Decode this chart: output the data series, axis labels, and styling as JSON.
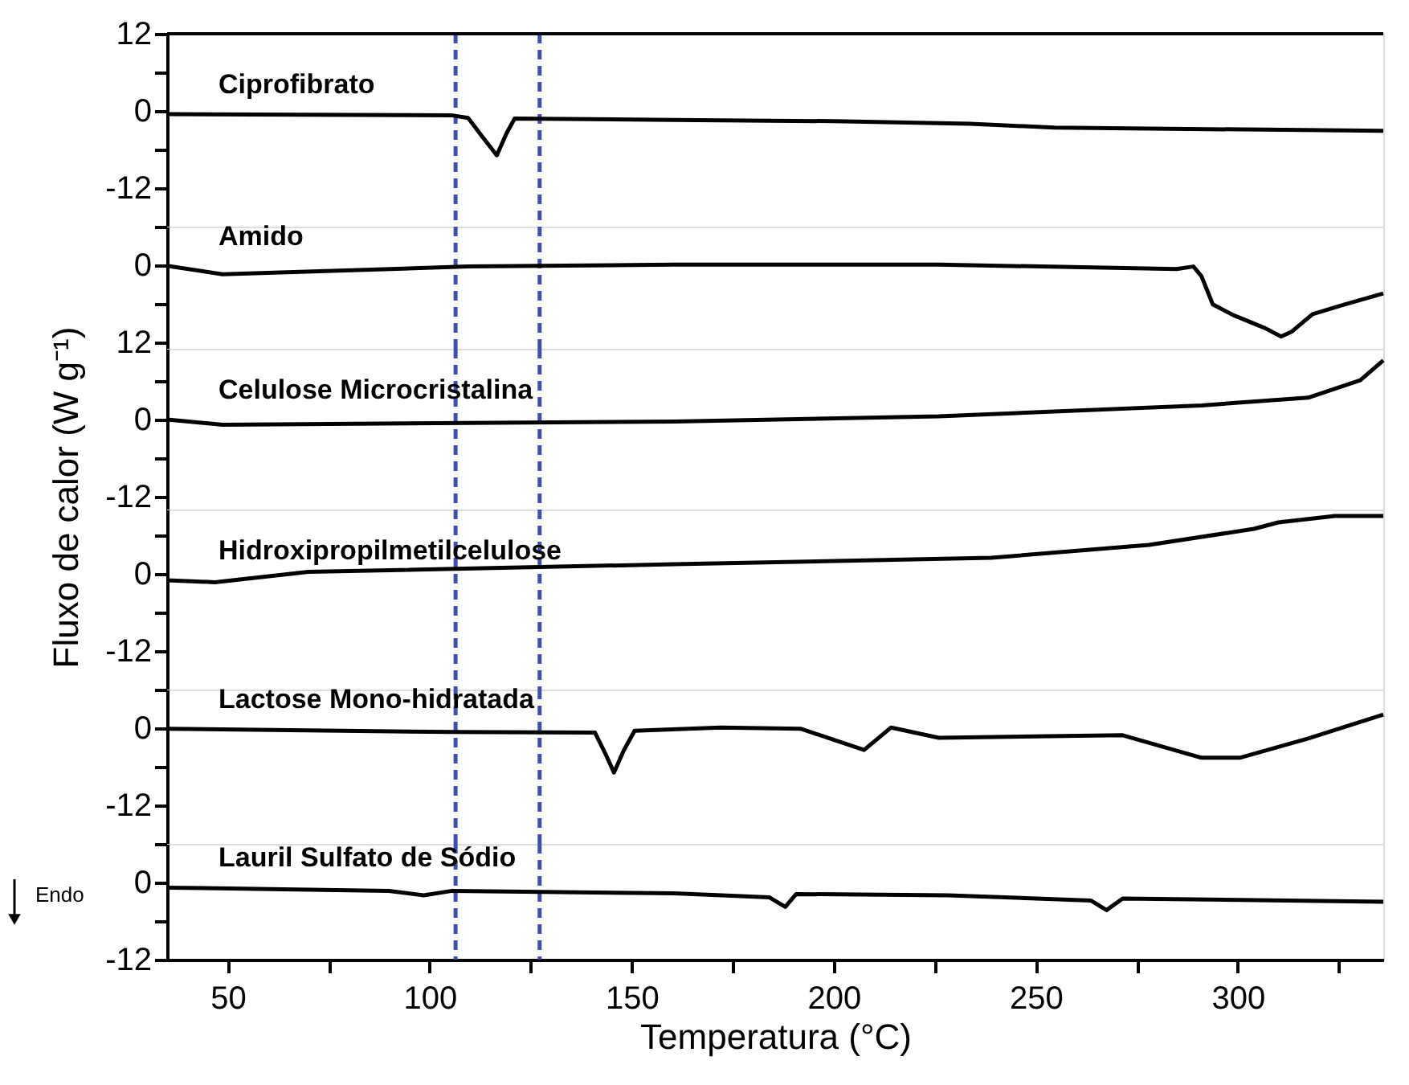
{
  "chart_data": [
    {
      "type": "line",
      "tick_labels": "y",
      "grid": false,
      "line_style": "solid",
      "xlim": [
        35,
        336
      ],
      "ylim": [
        -18,
        12
      ],
      "yticks": [
        12,
        {
          "value": 6,
          "label": null
        },
        0,
        {
          "value": -6,
          "label": null
        },
        -12,
        {
          "value": -18,
          "label": null
        }
      ],
      "series": [
        {
          "name": "Ciprofibrato",
          "color": "#000000",
          "x": [
            35,
            105.6,
            109.5,
            113,
            116.6,
            119,
            121,
            160.5,
            200,
            233.8,
            254.6,
            336
          ],
          "values": [
            -0.5,
            -0.7,
            -1.1,
            -4,
            -6.9,
            -3.5,
            -1.2,
            -1.4,
            -1.6,
            -2.0,
            -2.6,
            -3.1
          ]
        }
      ],
      "ref_lines": [
        {
          "axis": "x",
          "value": 106.4,
          "color": "#3f4fb0",
          "line_style": "dashed"
        },
        {
          "axis": "x",
          "value": 127.2,
          "color": "#3f4fb0",
          "line_style": "dashed"
        }
      ]
    },
    {
      "type": "line",
      "tick_labels": "y",
      "grid": false,
      "line_style": "solid",
      "xlim": [
        35,
        336
      ],
      "ylim": [
        13,
        -6
      ],
      "yticks": [
        0,
        {
          "value": 6,
          "label": null
        },
        12
      ],
      "series": [
        {
          "name": "Amido",
          "color": "#000000",
          "x": [
            35,
            48.7,
            109.5,
            160.5,
            226,
            284.8,
            289,
            291,
            293.8,
            299,
            306.8,
            310.7,
            313.4,
            318.5,
            326.4,
            336
          ],
          "values": [
            0.1,
            1.4,
            0.2,
            -0.1,
            -0.1,
            0.6,
            0.2,
            1.7,
            6.1,
            7.8,
            9.8,
            11.1,
            10.3,
            7.6,
            6.1,
            4.4
          ]
        }
      ],
      "ref_lines": [
        {
          "axis": "x",
          "value": 106.4,
          "color": "#3f4fb0",
          "line_style": "dashed"
        },
        {
          "axis": "x",
          "value": 127.2,
          "color": "#3f4fb0",
          "line_style": "dashed"
        }
      ]
    },
    {
      "type": "line",
      "tick_labels": "y",
      "grid": false,
      "line_style": "solid",
      "xlim": [
        35,
        336
      ],
      "ylim": [
        -14,
        11
      ],
      "ylabel": "Fluxo de calor (W g⁻¹)",
      "yticks": [
        {
          "value": 6,
          "label": null
        },
        0,
        {
          "value": -6,
          "label": null
        },
        -12
      ],
      "series": [
        {
          "name": "Celulose Microcristalina",
          "color": "#000000",
          "x": [
            35,
            48.7,
            160.5,
            226,
            291,
            317.4,
            330.3,
            336
          ],
          "values": [
            0.0,
            -0.8,
            -0.3,
            0.5,
            2.2,
            3.4,
            6.1,
            9.2
          ]
        }
      ],
      "ref_lines": [
        {
          "axis": "x",
          "value": 106.4,
          "color": "#3f4fb0",
          "line_style": "dashed"
        },
        {
          "axis": "x",
          "value": 127.2,
          "color": "#3f4fb0",
          "line_style": "dashed"
        }
      ]
    },
    {
      "type": "line",
      "tick_labels": "y",
      "grid": false,
      "line_style": "solid",
      "xlim": [
        35,
        336
      ],
      "ylim": [
        -18,
        10
      ],
      "yticks": [
        {
          "value": 6,
          "label": null
        },
        0,
        {
          "value": -6,
          "label": null
        },
        -12,
        {
          "value": -18,
          "label": null
        }
      ],
      "series": [
        {
          "name": "Hidroxipropilmetilcelulose",
          "color": "#000000",
          "x": [
            35,
            46.8,
            70,
            160.5,
            239,
            278,
            304,
            310,
            324,
            336
          ],
          "values": [
            -1.0,
            -1.3,
            0.3,
            1.5,
            2.5,
            4.5,
            7.0,
            8.0,
            9.0,
            9.0
          ]
        }
      ],
      "ref_lines": [
        {
          "axis": "x",
          "value": 106.4,
          "color": "#3f4fb0",
          "line_style": "dashed"
        },
        {
          "axis": "x",
          "value": 127.2,
          "color": "#3f4fb0",
          "line_style": "dashed"
        }
      ]
    },
    {
      "type": "line",
      "tick_labels": "y",
      "grid": false,
      "line_style": "solid",
      "xlim": [
        35,
        336
      ],
      "ylim": [
        -18,
        6
      ],
      "yticks": [
        0,
        {
          "value": -6,
          "label": null
        },
        -12,
        {
          "value": -18,
          "label": null
        }
      ],
      "series": [
        {
          "name": "Lactose Mono-hidratada",
          "color": "#000000",
          "x": [
            35,
            105.6,
            140.9,
            143.5,
            145.6,
            148,
            150.7,
            172,
            191.9,
            207.5,
            214.2,
            226,
            271.5,
            291,
            300.5,
            317.4,
            336
          ],
          "values": [
            -0.1,
            -0.6,
            -0.7,
            -4,
            -6.9,
            -3.5,
            -0.4,
            0.1,
            -0.1,
            -3.4,
            0.1,
            -1.5,
            -1.1,
            -4.6,
            -4.6,
            -1.6,
            2.1
          ]
        }
      ],
      "ref_lines": [
        {
          "axis": "x",
          "value": 106.4,
          "color": "#3f4fb0",
          "line_style": "dashed"
        },
        {
          "axis": "x",
          "value": 127.2,
          "color": "#3f4fb0",
          "line_style": "dashed"
        }
      ]
    },
    {
      "type": "line",
      "grid": false,
      "line_style": "solid",
      "xlim": [
        35,
        336
      ],
      "ylim": [
        -12,
        6
      ],
      "xlabel": "Temperatura (°C)",
      "xticks": [
        50,
        {
          "value": 75,
          "label": null
        },
        100,
        {
          "value": 125,
          "label": null
        },
        150,
        {
          "value": 175,
          "label": null
        },
        200,
        {
          "value": 225,
          "label": null
        },
        250,
        {
          "value": 275,
          "label": null
        },
        300,
        {
          "value": 325,
          "label": null
        }
      ],
      "yticks": [
        0,
        {
          "value": -6,
          "label": null
        },
        -12
      ],
      "series": [
        {
          "name": "Lauril Sulfato de Sódio",
          "color": "#000000",
          "x": [
            35,
            89.9,
            98.5,
            105.6,
            160.5,
            184,
            188,
            190.7,
            228.3,
            263.6,
            267.5,
            271.5,
            336
          ],
          "values": [
            -0.8,
            -1.3,
            -2.0,
            -1.3,
            -1.7,
            -2.3,
            -3.8,
            -1.8,
            -2.0,
            -2.8,
            -4.3,
            -2.5,
            -3.0
          ]
        }
      ],
      "ref_lines": [
        {
          "axis": "x",
          "value": 106.4,
          "color": "#3f4fb0",
          "line_style": "dashed"
        },
        {
          "axis": "x",
          "value": 127.2,
          "color": "#3f4fb0",
          "line_style": "dashed"
        }
      ],
      "annotations": [
        "Endo"
      ]
    }
  ]
}
